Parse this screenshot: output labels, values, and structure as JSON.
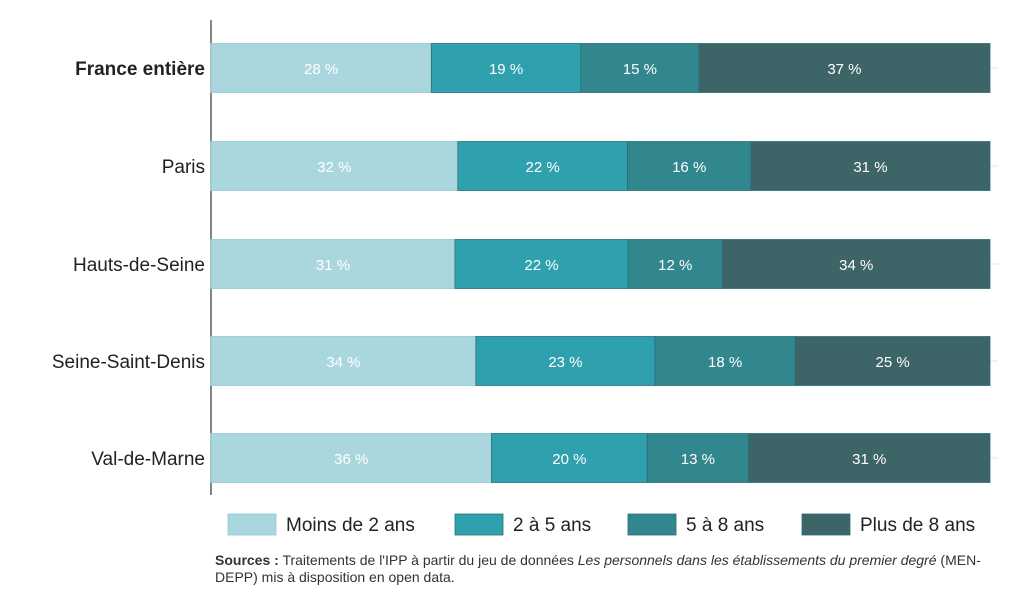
{
  "colors": {
    "moins_2": "#aad7de",
    "2_5": "#2fa0ae",
    "5_8": "#32878f",
    "plus_8": "#3d6466",
    "axis": "#333333",
    "grid": "#e6e6e6"
  },
  "chart_data": {
    "type": "bar",
    "orientation": "horizontal",
    "stacked": true,
    "categories": [
      "France entière",
      "Paris",
      "Hauts-de-Seine",
      "Seine-Saint-Denis",
      "Val-de-Marne"
    ],
    "series": [
      {
        "name": "Moins de 2 ans",
        "values": [
          28,
          32,
          31,
          34,
          36
        ],
        "labels": [
          "28 %",
          "32 %",
          "31 %",
          "34 %",
          "36 %"
        ]
      },
      {
        "name": "2 à 5 ans",
        "values": [
          19,
          22,
          22,
          23,
          20
        ],
        "labels": [
          "19 %",
          "22 %",
          "22 %",
          "23 %",
          "20 %"
        ]
      },
      {
        "name": "5 à 8 ans",
        "values": [
          15,
          16,
          12,
          18,
          13
        ],
        "labels": [
          "15 %",
          "16 %",
          "12 %",
          "18 %",
          "13 %"
        ]
      },
      {
        "name": "Plus de 8 ans",
        "values": [
          37,
          31,
          34,
          25,
          31
        ],
        "labels": [
          "37 %",
          "31 %",
          "34 %",
          "25 %",
          "31 %"
        ]
      }
    ],
    "bold_category": "France entière",
    "legend_position": "bottom",
    "grid": false
  },
  "sources": {
    "label": "Sources :",
    "text_before": " Traitements de l'IPP à partir du jeu de données ",
    "dataset": "Les personnels dans les établissements du premier degré",
    "text_after": " (MEN-DEPP) mis à disposition en open data."
  }
}
